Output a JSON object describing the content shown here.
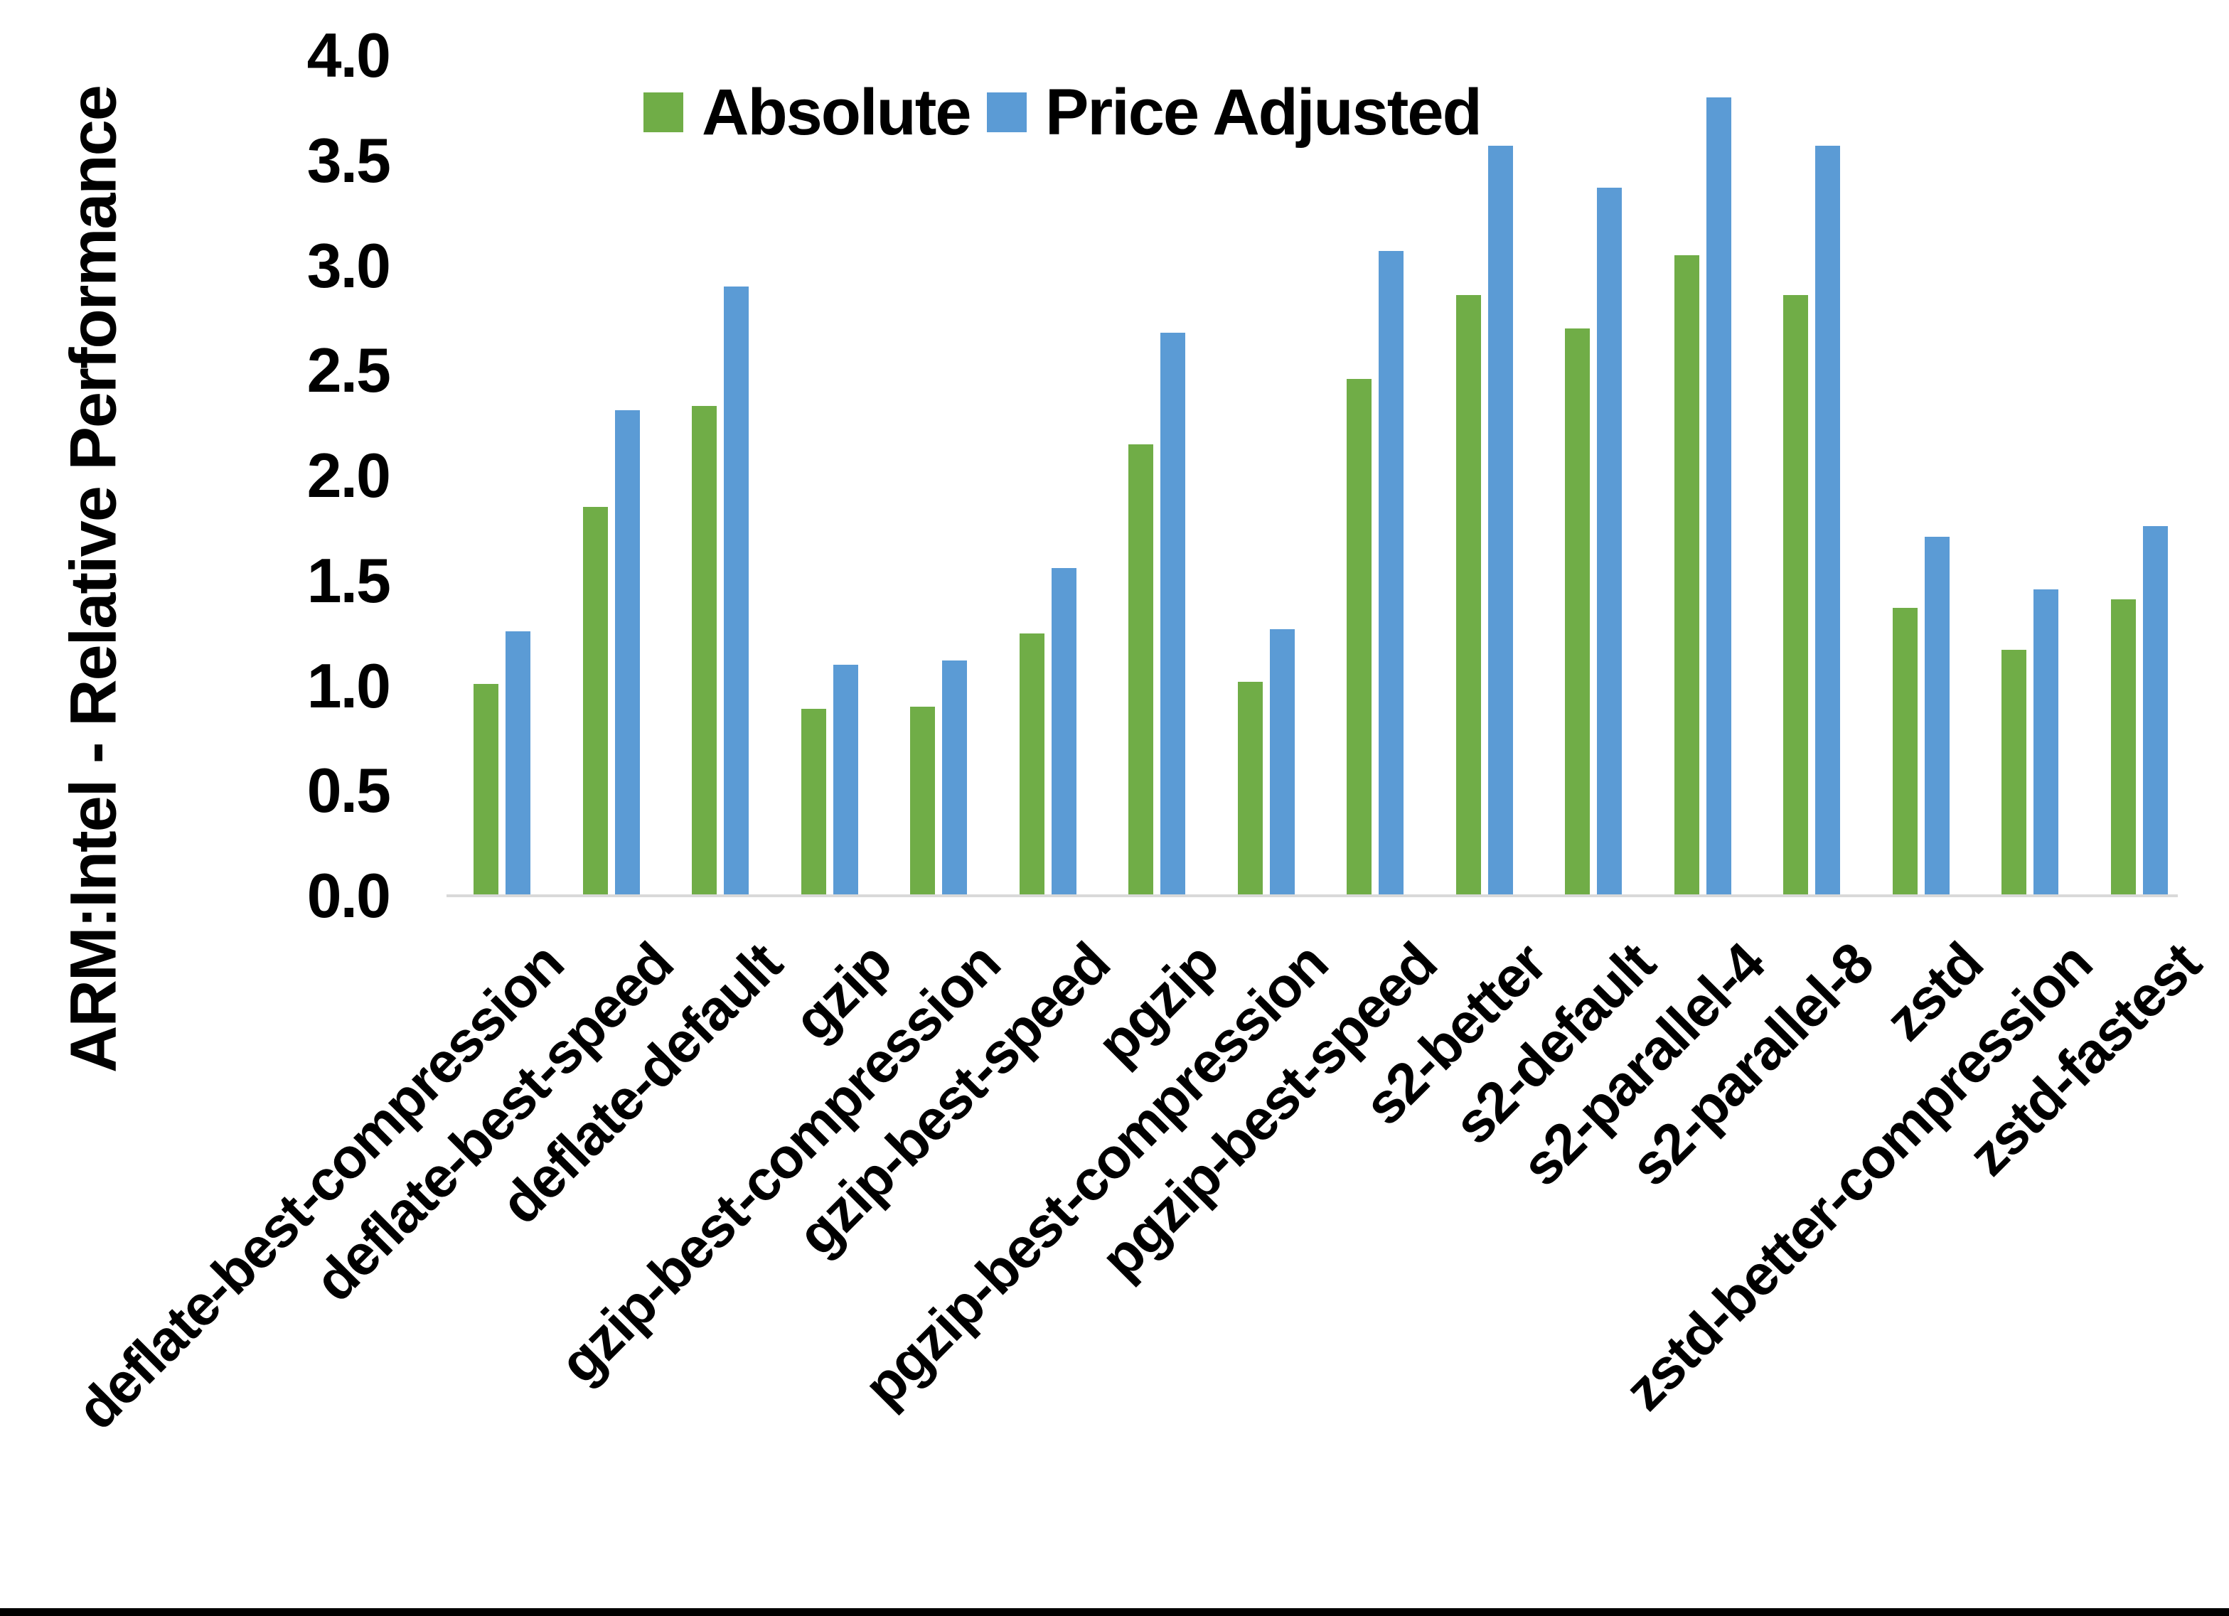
{
  "chart_data": {
    "type": "bar",
    "y_axis_title": "ARM:Intel - Relative Performance",
    "categories": [
      "deflate-best-compression",
      "deflate-best-speed",
      "deflate-default",
      "gzip",
      "gzip-best-compression",
      "gzip-best-speed",
      "pgzip",
      "pgzip-best-compression",
      "pgzip-best-speed",
      "s2-better",
      "s2-default",
      "s2-parallel-4",
      "s2-parallel-8",
      "zstd",
      "zstd-better-compression",
      "zstd-fastest"
    ],
    "series": [
      {
        "name": "Absolute",
        "color": "#70AD47",
        "values": [
          1.01,
          1.85,
          2.33,
          0.89,
          0.9,
          1.25,
          2.15,
          1.02,
          2.46,
          2.86,
          2.7,
          3.05,
          2.86,
          1.37,
          1.17,
          1.41
        ]
      },
      {
        "name": "Price Adjusted",
        "color": "#5B9BD5",
        "values": [
          1.26,
          2.31,
          2.9,
          1.1,
          1.12,
          1.56,
          2.68,
          1.27,
          3.07,
          3.57,
          3.37,
          3.8,
          3.57,
          1.71,
          1.46,
          1.76
        ]
      }
    ],
    "y_ticks": [
      "0.0",
      "0.5",
      "1.0",
      "1.5",
      "2.0",
      "2.5",
      "3.0",
      "3.5",
      "4.0"
    ],
    "ylim": [
      0.0,
      4.0
    ],
    "grid": false,
    "legend_position": "top-center",
    "axis_line_color": "#D9D9D9",
    "xlabel": "",
    "title": ""
  }
}
